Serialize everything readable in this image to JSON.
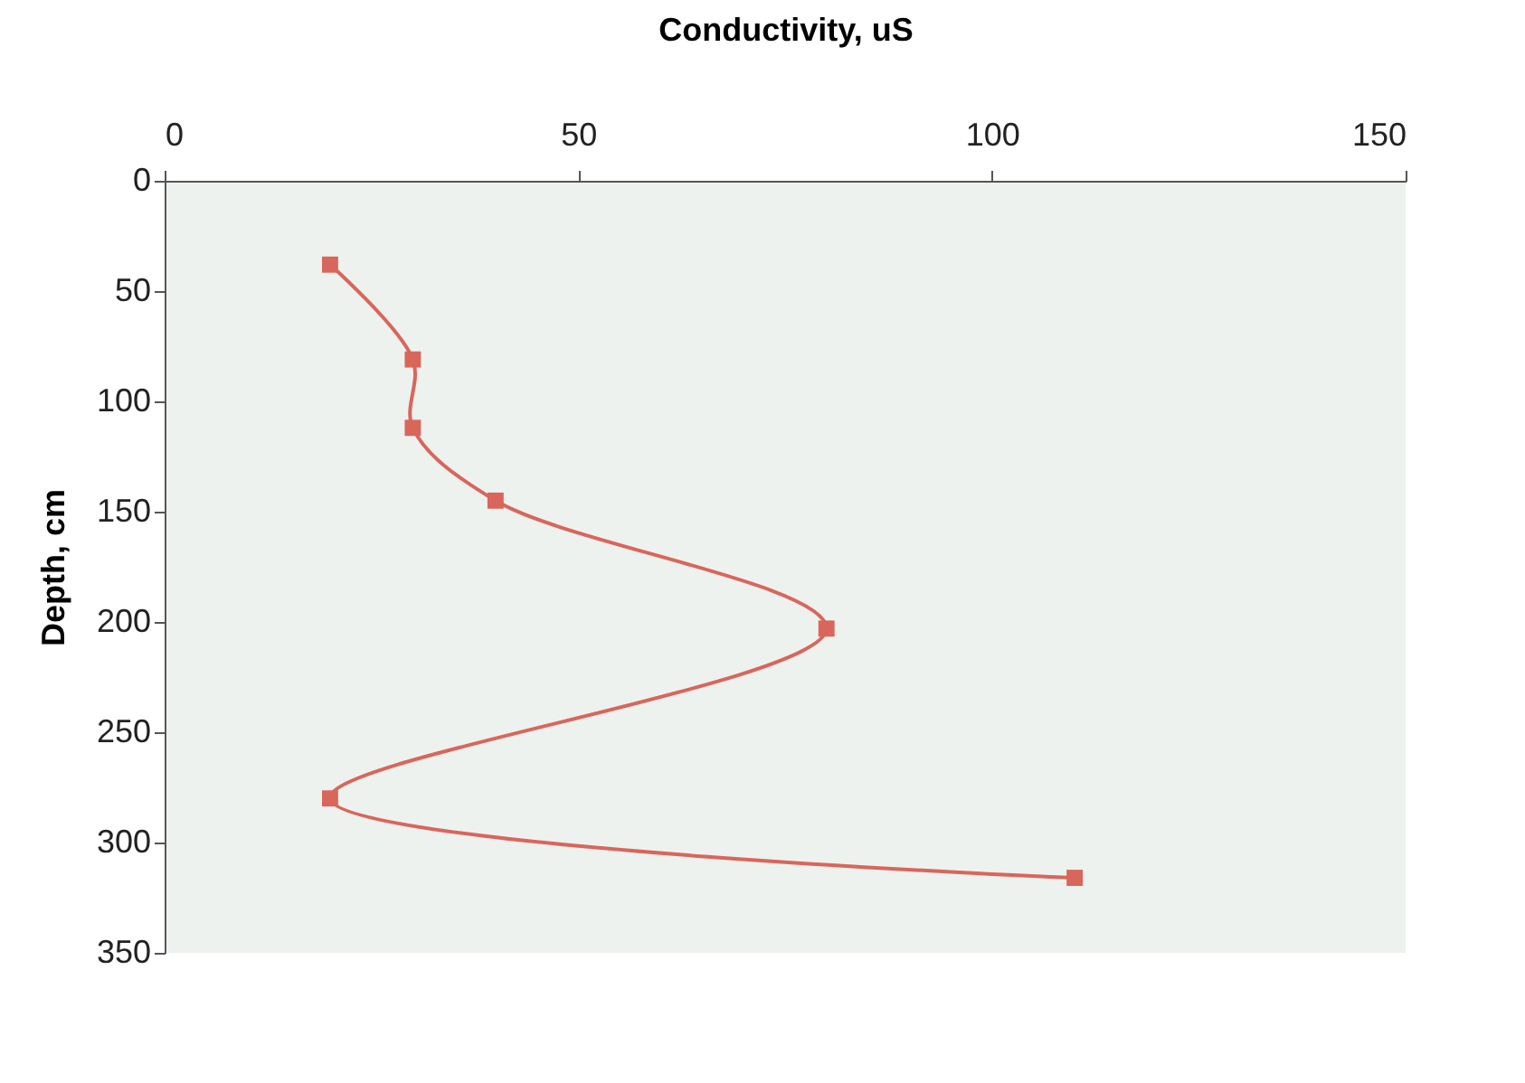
{
  "chart_data": {
    "type": "line",
    "xlabel": "Conductivity, uS",
    "ylabel": "Depth, cm",
    "x": [
      20,
      30,
      30,
      40,
      80,
      20,
      110
    ],
    "series": [
      {
        "color": "#d9665b",
        "values": [
          38,
          81,
          112,
          145,
          203,
          280,
          316
        ]
      }
    ],
    "xlim": [
      0,
      150
    ],
    "xticks": [
      0,
      50,
      100,
      150
    ],
    "ylim": [
      350,
      0
    ],
    "yticks": [
      0,
      50,
      100,
      150,
      200,
      250,
      300,
      350
    ],
    "marker": "square",
    "line_style": "solid",
    "grid": false
  }
}
